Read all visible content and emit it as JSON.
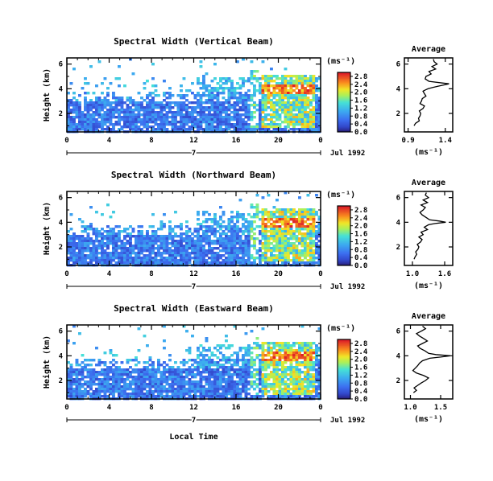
{
  "chart_data": [
    {
      "type": "heatmap",
      "title": "Spectral Width (Vertical Beam)",
      "ylabel": "Height (km)",
      "x_ticks": [
        "0",
        "4",
        "8",
        "12",
        "16",
        "20",
        "0"
      ],
      "y_ticks": [
        "2",
        "4",
        "6"
      ],
      "xlim": [
        0,
        24
      ],
      "ylim": [
        0.5,
        6.5
      ],
      "date_day": "7",
      "date_label": "Jul 1992",
      "colorbar": {
        "unit": "(ms⁻¹)",
        "ticks": [
          "0.0",
          "0.4",
          "0.8",
          "1.2",
          "1.6",
          "2.0",
          "2.4",
          "2.8"
        ],
        "range": [
          0,
          3.0
        ]
      },
      "average": {
        "title": "Average",
        "xlabel": "(ms⁻¹)",
        "x_ticks": [
          "0.9",
          "1.4"
        ],
        "y_ticks": [
          "2",
          "4",
          "6"
        ],
        "xlim": [
          0.85,
          1.5
        ],
        "x": [
          0.98,
          1.0,
          1.05,
          1.04,
          1.06,
          1.07,
          1.05,
          1.1,
          1.12,
          1.06,
          1.08,
          1.09,
          1.14,
          1.12,
          1.1,
          1.13,
          1.17,
          1.23,
          1.3,
          1.45,
          1.18,
          1.13,
          1.14,
          1.21,
          1.18,
          1.27,
          1.22,
          1.29,
          1.25,
          1.24
        ],
        "h": [
          1.0,
          1.2,
          1.4,
          1.6,
          1.8,
          2.0,
          2.2,
          2.4,
          2.6,
          2.8,
          3.0,
          3.2,
          3.4,
          3.6,
          3.8,
          3.9,
          4.0,
          4.1,
          4.2,
          4.4,
          4.6,
          4.8,
          5.0,
          5.2,
          5.4,
          5.6,
          5.8,
          6.0,
          6.2,
          6.4
        ]
      }
    },
    {
      "type": "heatmap",
      "title": "Spectral Width (Northward Beam)",
      "ylabel": "Height (km)",
      "x_ticks": [
        "0",
        "4",
        "8",
        "12",
        "16",
        "20",
        "0"
      ],
      "y_ticks": [
        "2",
        "4",
        "6"
      ],
      "xlim": [
        0,
        24
      ],
      "ylim": [
        0.5,
        6.5
      ],
      "date_day": "7",
      "date_label": "Jul 1992",
      "colorbar": {
        "unit": "(ms⁻¹)",
        "ticks": [
          "0.0",
          "0.4",
          "0.8",
          "1.2",
          "1.6",
          "2.0",
          "2.4",
          "2.8"
        ],
        "range": [
          0,
          3.0
        ]
      },
      "average": {
        "title": "Average",
        "xlabel": "(ms⁻¹)",
        "x_ticks": [
          "1.0",
          "1.6"
        ],
        "y_ticks": [
          "2",
          "4",
          "6"
        ],
        "xlim": [
          0.85,
          1.75
        ],
        "x": [
          1.03,
          1.05,
          1.08,
          1.06,
          1.1,
          1.12,
          1.09,
          1.15,
          1.18,
          1.12,
          1.2,
          1.16,
          1.28,
          1.22,
          1.3,
          1.42,
          1.62,
          1.5,
          1.32,
          1.25,
          1.18,
          1.14,
          1.2,
          1.24,
          1.16,
          1.28,
          1.2,
          1.3,
          1.24,
          1.26
        ],
        "h": [
          1.0,
          1.2,
          1.4,
          1.6,
          1.8,
          2.0,
          2.2,
          2.4,
          2.6,
          2.8,
          3.0,
          3.2,
          3.4,
          3.6,
          3.8,
          3.9,
          4.0,
          4.1,
          4.2,
          4.4,
          4.6,
          4.8,
          5.0,
          5.2,
          5.4,
          5.6,
          5.8,
          6.0,
          6.2,
          6.4
        ]
      }
    },
    {
      "type": "heatmap",
      "title": "Spectral Width (Eastward Beam)",
      "ylabel": "Height (km)",
      "xlabel": "Local Time",
      "x_ticks": [
        "0",
        "4",
        "8",
        "12",
        "16",
        "20",
        "0"
      ],
      "y_ticks": [
        "2",
        "4",
        "6"
      ],
      "xlim": [
        0,
        24
      ],
      "ylim": [
        0.5,
        6.5
      ],
      "date_day": "7",
      "date_label": "Jul 1992",
      "colorbar": {
        "unit": "(ms⁻¹)",
        "ticks": [
          "0.0",
          "0.4",
          "0.8",
          "1.2",
          "1.6",
          "2.0",
          "2.4",
          "2.8"
        ],
        "range": [
          0,
          3.0
        ]
      },
      "average": {
        "title": "Average",
        "xlabel": "(ms⁻¹)",
        "x_ticks": [
          "1.0",
          "1.5"
        ],
        "y_ticks": [
          "2",
          "4",
          "6"
        ],
        "xlim": [
          0.9,
          1.7
        ],
        "x": [
          1.05,
          1.1,
          1.06,
          1.12,
          1.18,
          1.25,
          1.3,
          1.22,
          1.1,
          1.04,
          1.08,
          1.12,
          1.15,
          1.2,
          1.32,
          1.5,
          1.66,
          1.42,
          1.3,
          1.24,
          1.16,
          1.12,
          1.2,
          1.28,
          1.22,
          1.15,
          1.1,
          1.18,
          1.25,
          1.2
        ],
        "h": [
          1.0,
          1.2,
          1.4,
          1.6,
          1.8,
          2.0,
          2.2,
          2.4,
          2.6,
          2.8,
          3.0,
          3.2,
          3.4,
          3.6,
          3.8,
          3.9,
          4.0,
          4.1,
          4.2,
          4.4,
          4.6,
          4.8,
          5.0,
          5.2,
          5.4,
          5.6,
          5.8,
          6.0,
          6.2,
          6.4
        ]
      }
    }
  ]
}
